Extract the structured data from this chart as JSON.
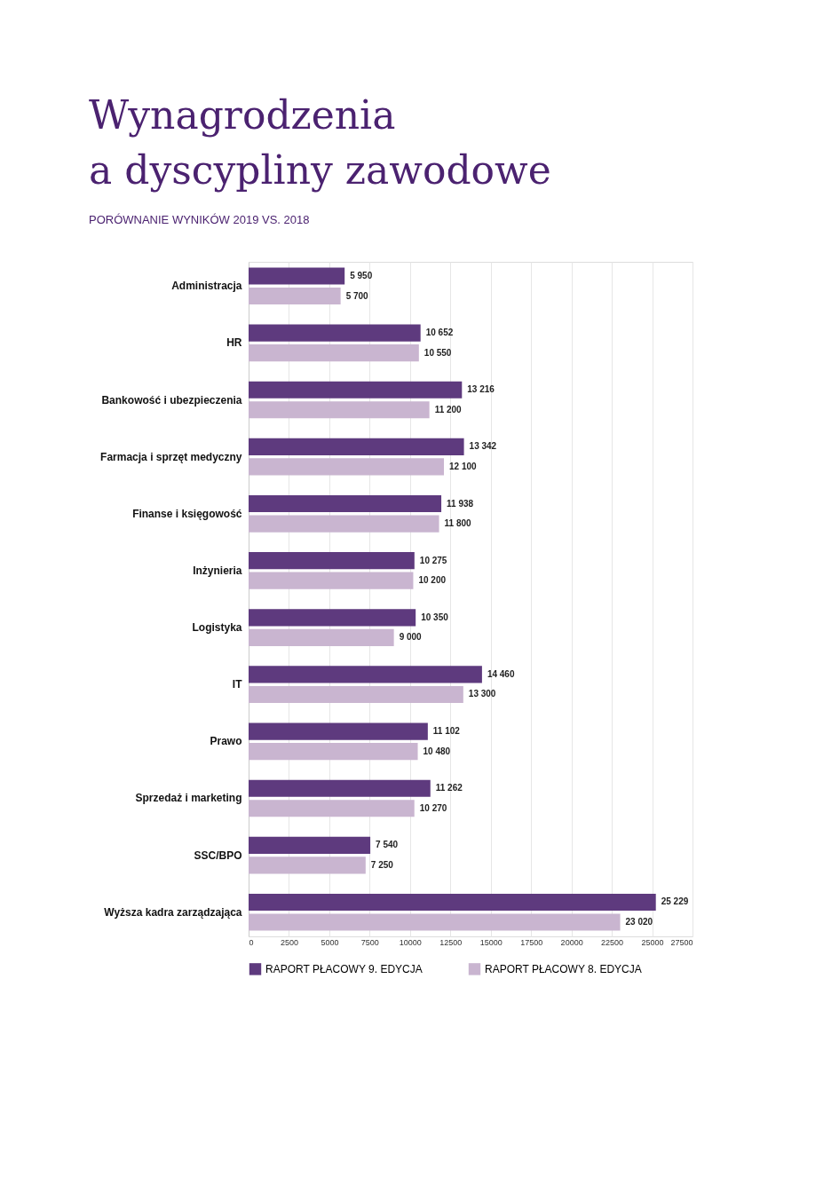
{
  "chart_data": {
    "type": "bar",
    "orientation": "horizontal",
    "title": "Wynagrodzenia\na dyscypliny zawodowe",
    "subtitle": "PORÓWNANIE WYNIKÓW 2019 VS. 2018",
    "categories": [
      "Administracja",
      "HR",
      "Bankowość i ubezpieczenia",
      "Farmacja i sprzęt medyczny",
      "Finanse i księgowość",
      "Inżynieria",
      "Logistyka",
      "IT",
      "Prawo",
      "Sprzedaż i marketing",
      "SSC/BPO",
      "Wyższa kadra zarządzająca"
    ],
    "series": [
      {
        "name": "RAPORT PŁACOWY 9. EDYCJA",
        "color": "#5e3a7e",
        "values": [
          5950,
          10652,
          13216,
          13342,
          11938,
          10275,
          10350,
          14460,
          11102,
          11262,
          7540,
          25229
        ],
        "value_labels": [
          "5 950",
          "10 652",
          "13 216",
          "13 342",
          "11 938",
          "10 275",
          "10 350",
          "14 460",
          "11 102",
          "11 262",
          "7 540",
          "25 229"
        ]
      },
      {
        "name": "RAPORT PŁACOWY 8. EDYCJA",
        "color": "#c9b5d0",
        "values": [
          5700,
          10550,
          11200,
          12100,
          11800,
          10200,
          9000,
          13300,
          10480,
          10270,
          7250,
          23020
        ],
        "value_labels": [
          "5 700",
          "10 550",
          "11 200",
          "12 100",
          "11 800",
          "10 200",
          "9 000",
          "13 300",
          "10 480",
          "10 270",
          "7 250",
          "23 020"
        ]
      }
    ],
    "xlim": [
      0,
      27500
    ],
    "xticks": [
      0,
      2500,
      5000,
      7500,
      10000,
      12500,
      15000,
      17500,
      20000,
      22500,
      25000,
      27500
    ],
    "grid": "x",
    "legend": "bottom"
  }
}
